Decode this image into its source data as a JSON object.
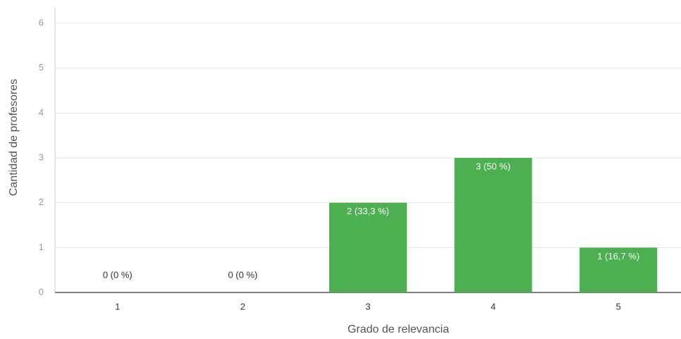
{
  "chart_data": {
    "type": "bar",
    "x_label": "Grado de relevancia",
    "y_label": "Cantidad de profesores",
    "categories": [
      "1",
      "2",
      "3",
      "4",
      "5"
    ],
    "values": [
      0,
      0,
      2,
      3,
      1
    ],
    "value_labels": [
      "0 (0 %)",
      "0 (0 %)",
      "2 (33,3 %)",
      "3 (50 %)",
      "1 (16,7 %)"
    ],
    "color": "#4caf50",
    "ylim": [
      0,
      6
    ],
    "yticks": [
      0,
      1,
      2,
      3,
      4,
      5,
      6
    ],
    "grid": true
  }
}
